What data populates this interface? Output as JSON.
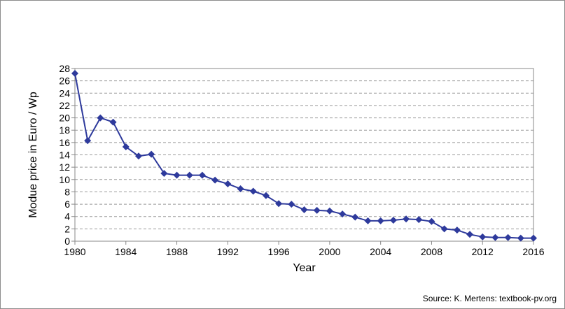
{
  "chart_data": {
    "type": "line",
    "xlabel": "Year",
    "ylabel": "Modue price in Euro / Wp",
    "xlim": [
      1980,
      2016
    ],
    "ylim": [
      0,
      28
    ],
    "x_ticks": [
      1980,
      1984,
      1988,
      1992,
      1996,
      2000,
      2004,
      2008,
      2012,
      2016
    ],
    "y_ticks": [
      0,
      2,
      4,
      6,
      8,
      10,
      12,
      14,
      16,
      18,
      20,
      22,
      24,
      26,
      28
    ],
    "grid": "horizontal-dashed",
    "legend": "none",
    "series": [
      {
        "color": "#2e3a9c",
        "marker": "diamond",
        "x": [
          1980,
          1981,
          1982,
          1983,
          1984,
          1985,
          1986,
          1987,
          1988,
          1989,
          1990,
          1991,
          1992,
          1993,
          1994,
          1995,
          1996,
          1997,
          1998,
          1999,
          2000,
          2001,
          2002,
          2003,
          2004,
          2005,
          2006,
          2007,
          2008,
          2009,
          2010,
          2011,
          2012,
          2013,
          2014,
          2015,
          2016
        ],
        "y": [
          27.2,
          16.3,
          20.0,
          19.3,
          15.3,
          13.8,
          14.1,
          11.0,
          10.7,
          10.7,
          10.7,
          9.9,
          9.3,
          8.5,
          8.1,
          7.4,
          6.1,
          6.0,
          5.1,
          5.0,
          4.9,
          4.4,
          3.9,
          3.3,
          3.3,
          3.4,
          3.6,
          3.5,
          3.2,
          2.0,
          1.8,
          1.1,
          0.7,
          0.6,
          0.6,
          0.5,
          0.5
        ]
      }
    ]
  },
  "source": "Source: K. Mertens: textbook-pv.org"
}
